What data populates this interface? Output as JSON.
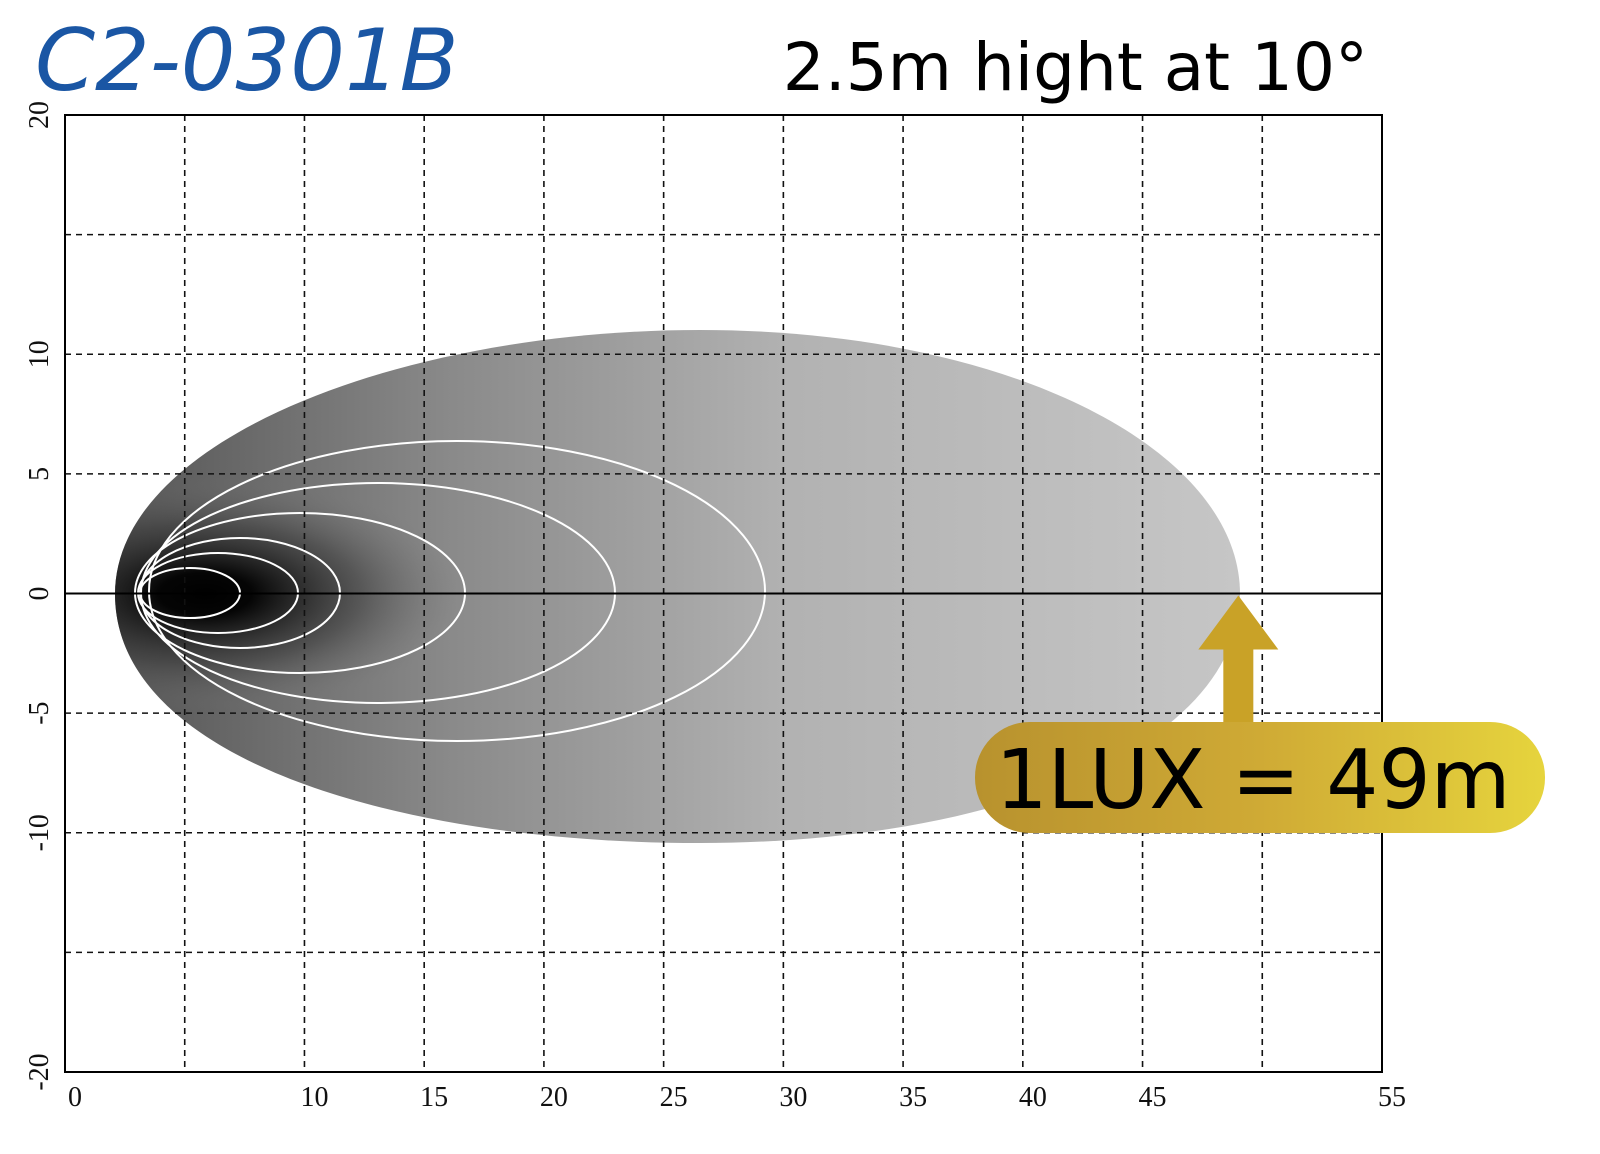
{
  "chart_data": {
    "type": "isolux",
    "title": "C2-0301B",
    "subtitle": "2.5m hight at 10°",
    "title_color": "#1a56a4",
    "xlim": [
      0,
      55
    ],
    "ylim": [
      -20,
      20
    ],
    "xticks": [
      0,
      {
        "value": 5,
        "label": null
      },
      10,
      15,
      20,
      25,
      30,
      35,
      40,
      45,
      {
        "value": 50,
        "label": null
      },
      55
    ],
    "yticks": [
      -20,
      {
        "value": -15,
        "label": null
      },
      -10,
      -5,
      0,
      5,
      10,
      {
        "value": 15,
        "label": null
      },
      20
    ],
    "grid": true,
    "annotation": {
      "text": "1LUX = 49m",
      "x": 49,
      "color": "#c9a227"
    }
  }
}
